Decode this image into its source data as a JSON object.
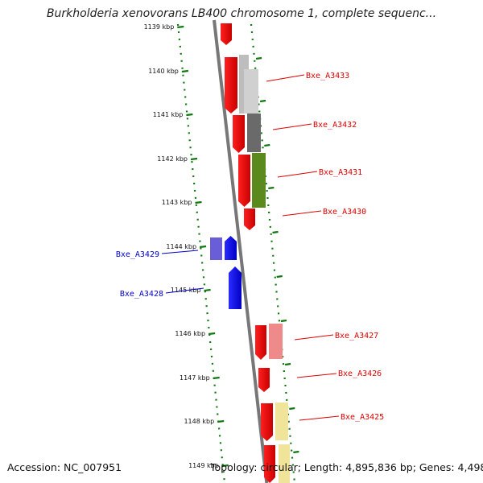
{
  "title": "Burkholderia xenovorans LB400 chromosome 1, complete sequenc...",
  "accession_label": "Accession: NC_007951",
  "stats_label": "Topology: circular; Length: 4,895,836 bp; Genes: 4,498",
  "colors": {
    "forward_strand": "#dd0000",
    "reverse_strand": "#0000cc",
    "grid": "#117711",
    "axis": "#777777"
  },
  "position_ticks": [
    "1139 kbp",
    "1140 kbp",
    "1141 kbp",
    "1142 kbp",
    "1143 kbp",
    "1144 kbp",
    "1145 kbp",
    "1146 kbp",
    "1147 kbp",
    "1148 kbp",
    "1149 kbp"
  ],
  "gene_labels": [
    {
      "text": "Bxe_A3433",
      "strand": "forward"
    },
    {
      "text": "Bxe_A3432",
      "strand": "forward"
    },
    {
      "text": "Bxe_A3431",
      "strand": "forward"
    },
    {
      "text": "Bxe_A3430",
      "strand": "forward"
    },
    {
      "text": "Bxe_A3429",
      "strand": "reverse"
    },
    {
      "text": "Bxe_A3428",
      "strand": "reverse"
    },
    {
      "text": "Bxe_A3427",
      "strand": "forward"
    },
    {
      "text": "Bxe_A3426",
      "strand": "forward"
    },
    {
      "text": "Bxe_A3425",
      "strand": "forward"
    }
  ]
}
